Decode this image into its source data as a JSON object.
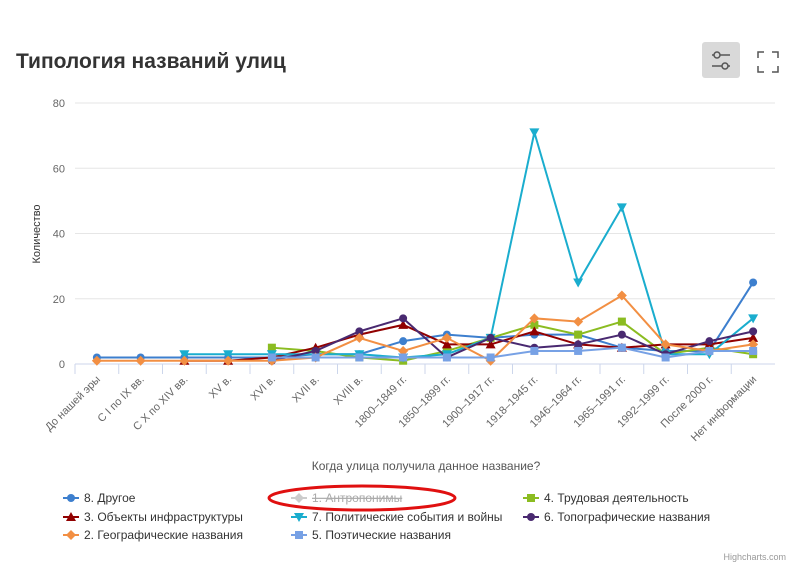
{
  "chart_data": {
    "type": "line",
    "title": "Типология названий улиц",
    "y_axis_label": "Количество",
    "x_axis_label": "Когда улица получила данное название?",
    "credits": "Highcharts.com",
    "categories": [
      "До нашей эры",
      "С I по IX вв.",
      "С X по XIV вв.",
      "XV в.",
      "XVI в.",
      "XVII в.",
      "XVIII в.",
      "1800–1849 гг.",
      "1850–1899 гг.",
      "1900–1917 гг.",
      "1918–1945 гг.",
      "1946–1964 гг.",
      "1965–1991 гг.",
      "1992–1999 гг.",
      "После 2000 г.",
      "Нет информации"
    ],
    "ylim": [
      0,
      80
    ],
    "yticks": [
      0,
      20,
      40,
      60,
      80
    ],
    "grid": true,
    "series": [
      {
        "name": "8. Другое",
        "color": "#3d7fce",
        "marker": "circle",
        "values": [
          2,
          2,
          2,
          2,
          2,
          3,
          3,
          7,
          9,
          8,
          9,
          9,
          5,
          4,
          4,
          25
        ]
      },
      {
        "name": "1. Антропонимы",
        "color": "#666666",
        "marker": "diamond",
        "visible": false
      },
      {
        "name": "4. Трудовая деятельность",
        "color": "#8bbc21",
        "marker": "square",
        "values": [
          null,
          null,
          null,
          null,
          5,
          4,
          2,
          1,
          4,
          8,
          12,
          9,
          13,
          3,
          5,
          3
        ]
      },
      {
        "name": "3. Объекты инфраструктуры",
        "color": "#910000",
        "marker": "triangle",
        "values": [
          null,
          null,
          1,
          1,
          2,
          5,
          9,
          12,
          6,
          6,
          10,
          6,
          5,
          6,
          6,
          8
        ]
      },
      {
        "name": "7. Политические события и войны",
        "color": "#1aadce",
        "marker": "triangle-down",
        "values": [
          null,
          null,
          3,
          3,
          3,
          3,
          3,
          2,
          3,
          8,
          71,
          25,
          48,
          3,
          3,
          14
        ]
      },
      {
        "name": "6. Топографические названия",
        "color": "#492970",
        "marker": "circle",
        "values": [
          null,
          null,
          null,
          null,
          1,
          4,
          10,
          14,
          2,
          8,
          5,
          6,
          9,
          3,
          7,
          10
        ]
      },
      {
        "name": "2. Географические названия",
        "color": "#f28f43",
        "marker": "diamond",
        "values": [
          1,
          1,
          1,
          1,
          1,
          2,
          8,
          4,
          8,
          1,
          14,
          13,
          21,
          6,
          4,
          6
        ]
      },
      {
        "name": "5. Поэтические названия",
        "color": "#77a1e5",
        "marker": "square",
        "values": [
          null,
          null,
          null,
          null,
          2,
          2,
          2,
          2,
          2,
          2,
          4,
          4,
          5,
          2,
          4,
          4
        ]
      }
    ]
  }
}
